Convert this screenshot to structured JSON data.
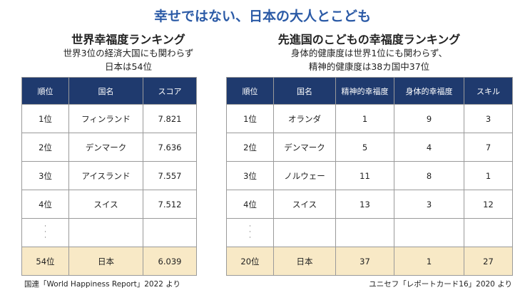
{
  "title": "幸せではない、日本の大人とこども",
  "left": {
    "heading": "世界幸福度ランキング",
    "subtitle": [
      "世界3位の経済大国にも関わらず",
      "日本は54位"
    ],
    "table": {
      "header": [
        "順位",
        "国名",
        "スコア"
      ],
      "rows": [
        [
          "1位",
          "フィンランド",
          7.821
        ],
        [
          "2位",
          "デンマーク",
          7.636
        ],
        [
          "3位",
          "アイスランド",
          7.557
        ],
        [
          "4位",
          "スイス",
          7.512
        ]
      ],
      "last_row": [
        "54位",
        "日本",
        6.039
      ]
    },
    "source": "国連「World Happiness Report」2022 より"
  },
  "right": {
    "heading": "先進国のこどもの幸福度ランキング",
    "subtitle": [
      "身体的健康度は世界1位にも関わらず、",
      "精神的健康度は38カ国中37位"
    ],
    "table": {
      "header": [
        "順位",
        "国名",
        "精神的幸福度",
        "身体的幸福度",
        "スキル"
      ],
      "rows": [
        [
          "1位",
          "オランダ",
          1,
          9,
          3
        ],
        [
          "2位",
          "デンマーク",
          5,
          4,
          7
        ],
        [
          "3位",
          "ノルウェー",
          11,
          8,
          1
        ],
        [
          "4位",
          "スイス",
          13,
          3,
          12
        ]
      ],
      "last_row": [
        "20位",
        "日本",
        37,
        1,
        27
      ]
    },
    "source": "ユニセフ「レポートカード16」2020 より"
  }
}
